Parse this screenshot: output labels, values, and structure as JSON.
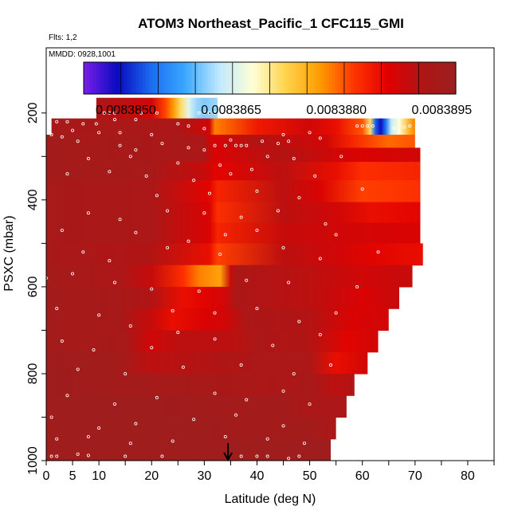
{
  "chart_data": {
    "type": "heatmap",
    "title": "ATOM3 Northeast_Pacific_1 CFC115_GMI",
    "flights_label": "Flts: 1,2",
    "date_label": "MMDD: 0928,1001",
    "xlabel": "Latitude (deg N)",
    "ylabel": "PSXC (mbar)",
    "xlim": [
      0,
      85
    ],
    "ylim": [
      1000,
      50
    ],
    "x_ticks": [
      0,
      5,
      10,
      20,
      30,
      40,
      50,
      60,
      70,
      80
    ],
    "y_ticks": [
      200,
      400,
      600,
      800,
      1000
    ],
    "colorbar": {
      "vmin": 0.0083844,
      "vmax": 0.0083897,
      "tick_values": [
        0.008385,
        0.0083865,
        0.008388,
        0.0083895
      ],
      "tick_labels": [
        "0.0083850",
        "0.0083865",
        "0.0083880",
        "0.0083895"
      ],
      "colors": [
        "#7a1fe8",
        "#0a0ac0",
        "#1a6cf0",
        "#3aa8ff",
        "#bfe8ff",
        "#ffffd6",
        "#ffd24a",
        "#ff9a00",
        "#ff3300",
        "#e00000",
        "#b01515",
        "#9b1f1f"
      ]
    },
    "arrow_latitude": 34.5,
    "levels": [
      {
        "p": 190,
        "lat_min": 9.5,
        "lat_max": 32.5,
        "x": [
          9.5,
          20,
          22.5,
          24,
          25.5,
          27,
          28.5,
          30,
          32.5
        ],
        "v": [
          0.0083893,
          0.0083889,
          0.0083882,
          0.0083878,
          0.0083872,
          0.0083866,
          0.0083862,
          0.0083861,
          0.0083862
        ]
      },
      {
        "p": 235,
        "lat_min": 1,
        "lat_max": 70,
        "x": [
          1,
          25,
          31,
          32,
          40,
          50,
          55,
          60,
          61.5,
          62.5,
          63.5,
          64.5,
          65.5,
          67,
          69,
          70
        ],
        "v": [
          0.0083894,
          0.0083893,
          0.0083889,
          0.0083879,
          0.0083885,
          0.0083889,
          0.0083886,
          0.0083881,
          0.0083872,
          0.0083853,
          0.0083849,
          0.0083855,
          0.0083864,
          0.0083868,
          0.0083876,
          0.0083879
        ]
      },
      {
        "p": 265,
        "lat_min": 0,
        "lat_max": 70,
        "x": [
          0,
          30,
          31.5,
          40,
          53,
          58,
          65,
          70
        ],
        "v": [
          0.0083895,
          0.0083893,
          0.0083888,
          0.0083892,
          0.0083889,
          0.0083884,
          0.008388,
          0.0083881
        ]
      },
      {
        "p": 295,
        "lat_min": 0,
        "lat_max": 71,
        "x": [
          0,
          30,
          32,
          45,
          55,
          60,
          71
        ],
        "v": [
          0.0083895,
          0.0083893,
          0.0083888,
          0.0083892,
          0.0083889,
          0.0083888,
          0.0083889
        ]
      },
      {
        "p": 330,
        "lat_min": 0,
        "lat_max": 71,
        "x": [
          0,
          20,
          30,
          32.5,
          45,
          55,
          60,
          71
        ],
        "v": [
          0.0083895,
          0.0083894,
          0.008389,
          0.0083887,
          0.0083891,
          0.0083886,
          0.0083883,
          0.0083884
        ]
      },
      {
        "p": 380,
        "lat_min": 0,
        "lat_max": 71,
        "x": [
          0,
          20,
          31,
          32.5,
          45,
          52,
          60,
          71
        ],
        "v": [
          0.0083894,
          0.0083893,
          0.0083887,
          0.0083884,
          0.0083891,
          0.0083888,
          0.0083882,
          0.0083883
        ]
      },
      {
        "p": 430,
        "lat_min": 0,
        "lat_max": 71,
        "x": [
          0,
          20,
          31,
          32.5,
          45,
          55,
          62,
          71
        ],
        "v": [
          0.0083894,
          0.0083893,
          0.0083888,
          0.0083883,
          0.0083891,
          0.0083889,
          0.0083886,
          0.0083887
        ]
      },
      {
        "p": 475,
        "lat_min": 0,
        "lat_max": 71,
        "x": [
          0,
          20,
          31,
          32.5,
          45,
          55,
          71
        ],
        "v": [
          0.0083894,
          0.0083893,
          0.0083888,
          0.0083884,
          0.008389,
          0.0083889,
          0.0083888
        ]
      },
      {
        "p": 525,
        "lat_min": 0,
        "lat_max": 71.5,
        "x": [
          0,
          20,
          31,
          32.5,
          45,
          55,
          62,
          71.5
        ],
        "v": [
          0.0083894,
          0.0083892,
          0.0083886,
          0.0083882,
          0.0083891,
          0.0083889,
          0.0083887,
          0.0083886
        ]
      },
      {
        "p": 575,
        "lat_min": 0,
        "lat_max": 69.5,
        "x": [
          0,
          14,
          20,
          26,
          29,
          33,
          35,
          36,
          50,
          60,
          69.5
        ],
        "v": [
          0.0083895,
          0.0083893,
          0.008389,
          0.0083883,
          0.0083879,
          0.0083877,
          0.008389,
          0.0083893,
          0.0083891,
          0.0083889,
          0.008389
        ]
      },
      {
        "p": 625,
        "lat_min": 0,
        "lat_max": 67,
        "x": [
          0,
          14,
          20,
          26,
          30,
          34,
          36,
          50,
          60,
          67
        ],
        "v": [
          0.0083895,
          0.0083894,
          0.0083892,
          0.0083886,
          0.0083887,
          0.0083889,
          0.0083893,
          0.0083891,
          0.0083888,
          0.008389
        ]
      },
      {
        "p": 675,
        "lat_min": 0,
        "lat_max": 65,
        "x": [
          0,
          14,
          20,
          24,
          30,
          34,
          38,
          50,
          58,
          65
        ],
        "v": [
          0.0083895,
          0.0083894,
          0.008389,
          0.0083886,
          0.0083888,
          0.0083889,
          0.0083893,
          0.0083892,
          0.0083888,
          0.0083889
        ]
      },
      {
        "p": 725,
        "lat_min": 0,
        "lat_max": 63,
        "x": [
          0,
          15,
          20,
          25,
          35,
          40,
          50,
          57,
          63
        ],
        "v": [
          0.0083895,
          0.0083894,
          0.0083889,
          0.0083891,
          0.0083891,
          0.0083893,
          0.0083892,
          0.0083887,
          0.0083889
        ]
      },
      {
        "p": 775,
        "lat_min": 0,
        "lat_max": 61,
        "x": [
          0,
          14,
          20,
          30,
          40,
          50,
          55,
          61
        ],
        "v": [
          0.0083896,
          0.0083895,
          0.0083891,
          0.0083892,
          0.0083893,
          0.0083893,
          0.0083886,
          0.0083889
        ]
      },
      {
        "p": 825,
        "lat_min": 0,
        "lat_max": 58.5,
        "x": [
          0,
          15,
          30,
          45,
          50,
          55,
          58.5
        ],
        "v": [
          0.0083896,
          0.0083895,
          0.0083894,
          0.0083893,
          0.0083894,
          0.0083891,
          0.0083892
        ]
      },
      {
        "p": 875,
        "lat_min": 0,
        "lat_max": 57,
        "x": [
          0,
          20,
          35,
          45,
          50,
          57
        ],
        "v": [
          0.0083896,
          0.0083896,
          0.0083895,
          0.0083895,
          0.0083893,
          0.0083893
        ]
      },
      {
        "p": 925,
        "lat_min": 0,
        "lat_max": 55,
        "x": [
          0,
          30,
          40,
          50,
          55
        ],
        "v": [
          0.0083896,
          0.0083896,
          0.0083895,
          0.0083895,
          0.0083893
        ]
      },
      {
        "p": 975,
        "lat_min": 0,
        "lat_max": 54,
        "x": [
          0,
          30,
          54
        ],
        "v": [
          0.0083896,
          0.0083896,
          0.0083896
        ]
      }
    ],
    "sample_points": [
      [
        11,
        200
      ],
      [
        12,
        200
      ],
      [
        13,
        200
      ],
      [
        18,
        200
      ],
      [
        21,
        200
      ],
      [
        29,
        200
      ],
      [
        30,
        200
      ],
      [
        31,
        200
      ],
      [
        32,
        200
      ],
      [
        2,
        220
      ],
      [
        4,
        220
      ],
      [
        7,
        225
      ],
      [
        9.5,
        225
      ],
      [
        13,
        215
      ],
      [
        14,
        245
      ],
      [
        17,
        215
      ],
      [
        25,
        225
      ],
      [
        27,
        230
      ],
      [
        30,
        236
      ],
      [
        59,
        230
      ],
      [
        60,
        230
      ],
      [
        61,
        230
      ],
      [
        62,
        230
      ],
      [
        66,
        235
      ],
      [
        68,
        232
      ],
      [
        69,
        230
      ],
      [
        5,
        240
      ],
      [
        10,
        245
      ],
      [
        20,
        250
      ],
      [
        35,
        262
      ],
      [
        45,
        250
      ],
      [
        50,
        245
      ],
      [
        1,
        250
      ],
      [
        3,
        255
      ],
      [
        6,
        265
      ],
      [
        14,
        275
      ],
      [
        17,
        285
      ],
      [
        22,
        270
      ],
      [
        27,
        280
      ],
      [
        30,
        285
      ],
      [
        32,
        275
      ],
      [
        34,
        275
      ],
      [
        36,
        275
      ],
      [
        37,
        275
      ],
      [
        38,
        275
      ],
      [
        41,
        265
      ],
      [
        44,
        270
      ],
      [
        46,
        265
      ],
      [
        52,
        258
      ],
      [
        8,
        305
      ],
      [
        16,
        300
      ],
      [
        25,
        315
      ],
      [
        33,
        320
      ],
      [
        42,
        300
      ],
      [
        47,
        305
      ],
      [
        56,
        300
      ],
      [
        4,
        340
      ],
      [
        12,
        335
      ],
      [
        19,
        345
      ],
      [
        28,
        355
      ],
      [
        35,
        340
      ],
      [
        39,
        330
      ],
      [
        51,
        345
      ],
      [
        21,
        390
      ],
      [
        31,
        385
      ],
      [
        40,
        380
      ],
      [
        48,
        395
      ],
      [
        60,
        375
      ],
      [
        8,
        430
      ],
      [
        14,
        445
      ],
      [
        23,
        425
      ],
      [
        30,
        430
      ],
      [
        37,
        440
      ],
      [
        44,
        425
      ],
      [
        53,
        455
      ],
      [
        3,
        470
      ],
      [
        17,
        475
      ],
      [
        27,
        495
      ],
      [
        34,
        480
      ],
      [
        40,
        470
      ],
      [
        55,
        480
      ],
      [
        7,
        520
      ],
      [
        12,
        540
      ],
      [
        23,
        510
      ],
      [
        33,
        525
      ],
      [
        45,
        510
      ],
      [
        52,
        535
      ],
      [
        63,
        520
      ],
      [
        0,
        580
      ],
      [
        5,
        570
      ],
      [
        13,
        590
      ],
      [
        20,
        605
      ],
      [
        29,
        610
      ],
      [
        38,
        585
      ],
      [
        46,
        590
      ],
      [
        59,
        600
      ],
      [
        2,
        650
      ],
      [
        10,
        665
      ],
      [
        16,
        690
      ],
      [
        24,
        655
      ],
      [
        32,
        660
      ],
      [
        40,
        650
      ],
      [
        48,
        680
      ],
      [
        55,
        660
      ],
      [
        3,
        725
      ],
      [
        9,
        745
      ],
      [
        20,
        740
      ],
      [
        25,
        705
      ],
      [
        32,
        720
      ],
      [
        43,
        735
      ],
      [
        52,
        710
      ],
      [
        6,
        790
      ],
      [
        15,
        800
      ],
      [
        26,
        785
      ],
      [
        37,
        780
      ],
      [
        47,
        800
      ],
      [
        54,
        780
      ],
      [
        4,
        850
      ],
      [
        13,
        870
      ],
      [
        21,
        855
      ],
      [
        32,
        845
      ],
      [
        38,
        860
      ],
      [
        45,
        840
      ],
      [
        50,
        870
      ],
      [
        1,
        900
      ],
      [
        10,
        925
      ],
      [
        17,
        915
      ],
      [
        28,
        905
      ],
      [
        36,
        895
      ],
      [
        45,
        920
      ],
      [
        2,
        950
      ],
      [
        8,
        945
      ],
      [
        16,
        960
      ],
      [
        24,
        955
      ],
      [
        34,
        945
      ],
      [
        42,
        950
      ],
      [
        49,
        960
      ],
      [
        1,
        990
      ],
      [
        2,
        990
      ],
      [
        6,
        985
      ],
      [
        8,
        988
      ],
      [
        15,
        990
      ],
      [
        22,
        990
      ],
      [
        37,
        990
      ],
      [
        40,
        990
      ],
      [
        42,
        990
      ],
      [
        46,
        995
      ],
      [
        48,
        990
      ]
    ]
  }
}
